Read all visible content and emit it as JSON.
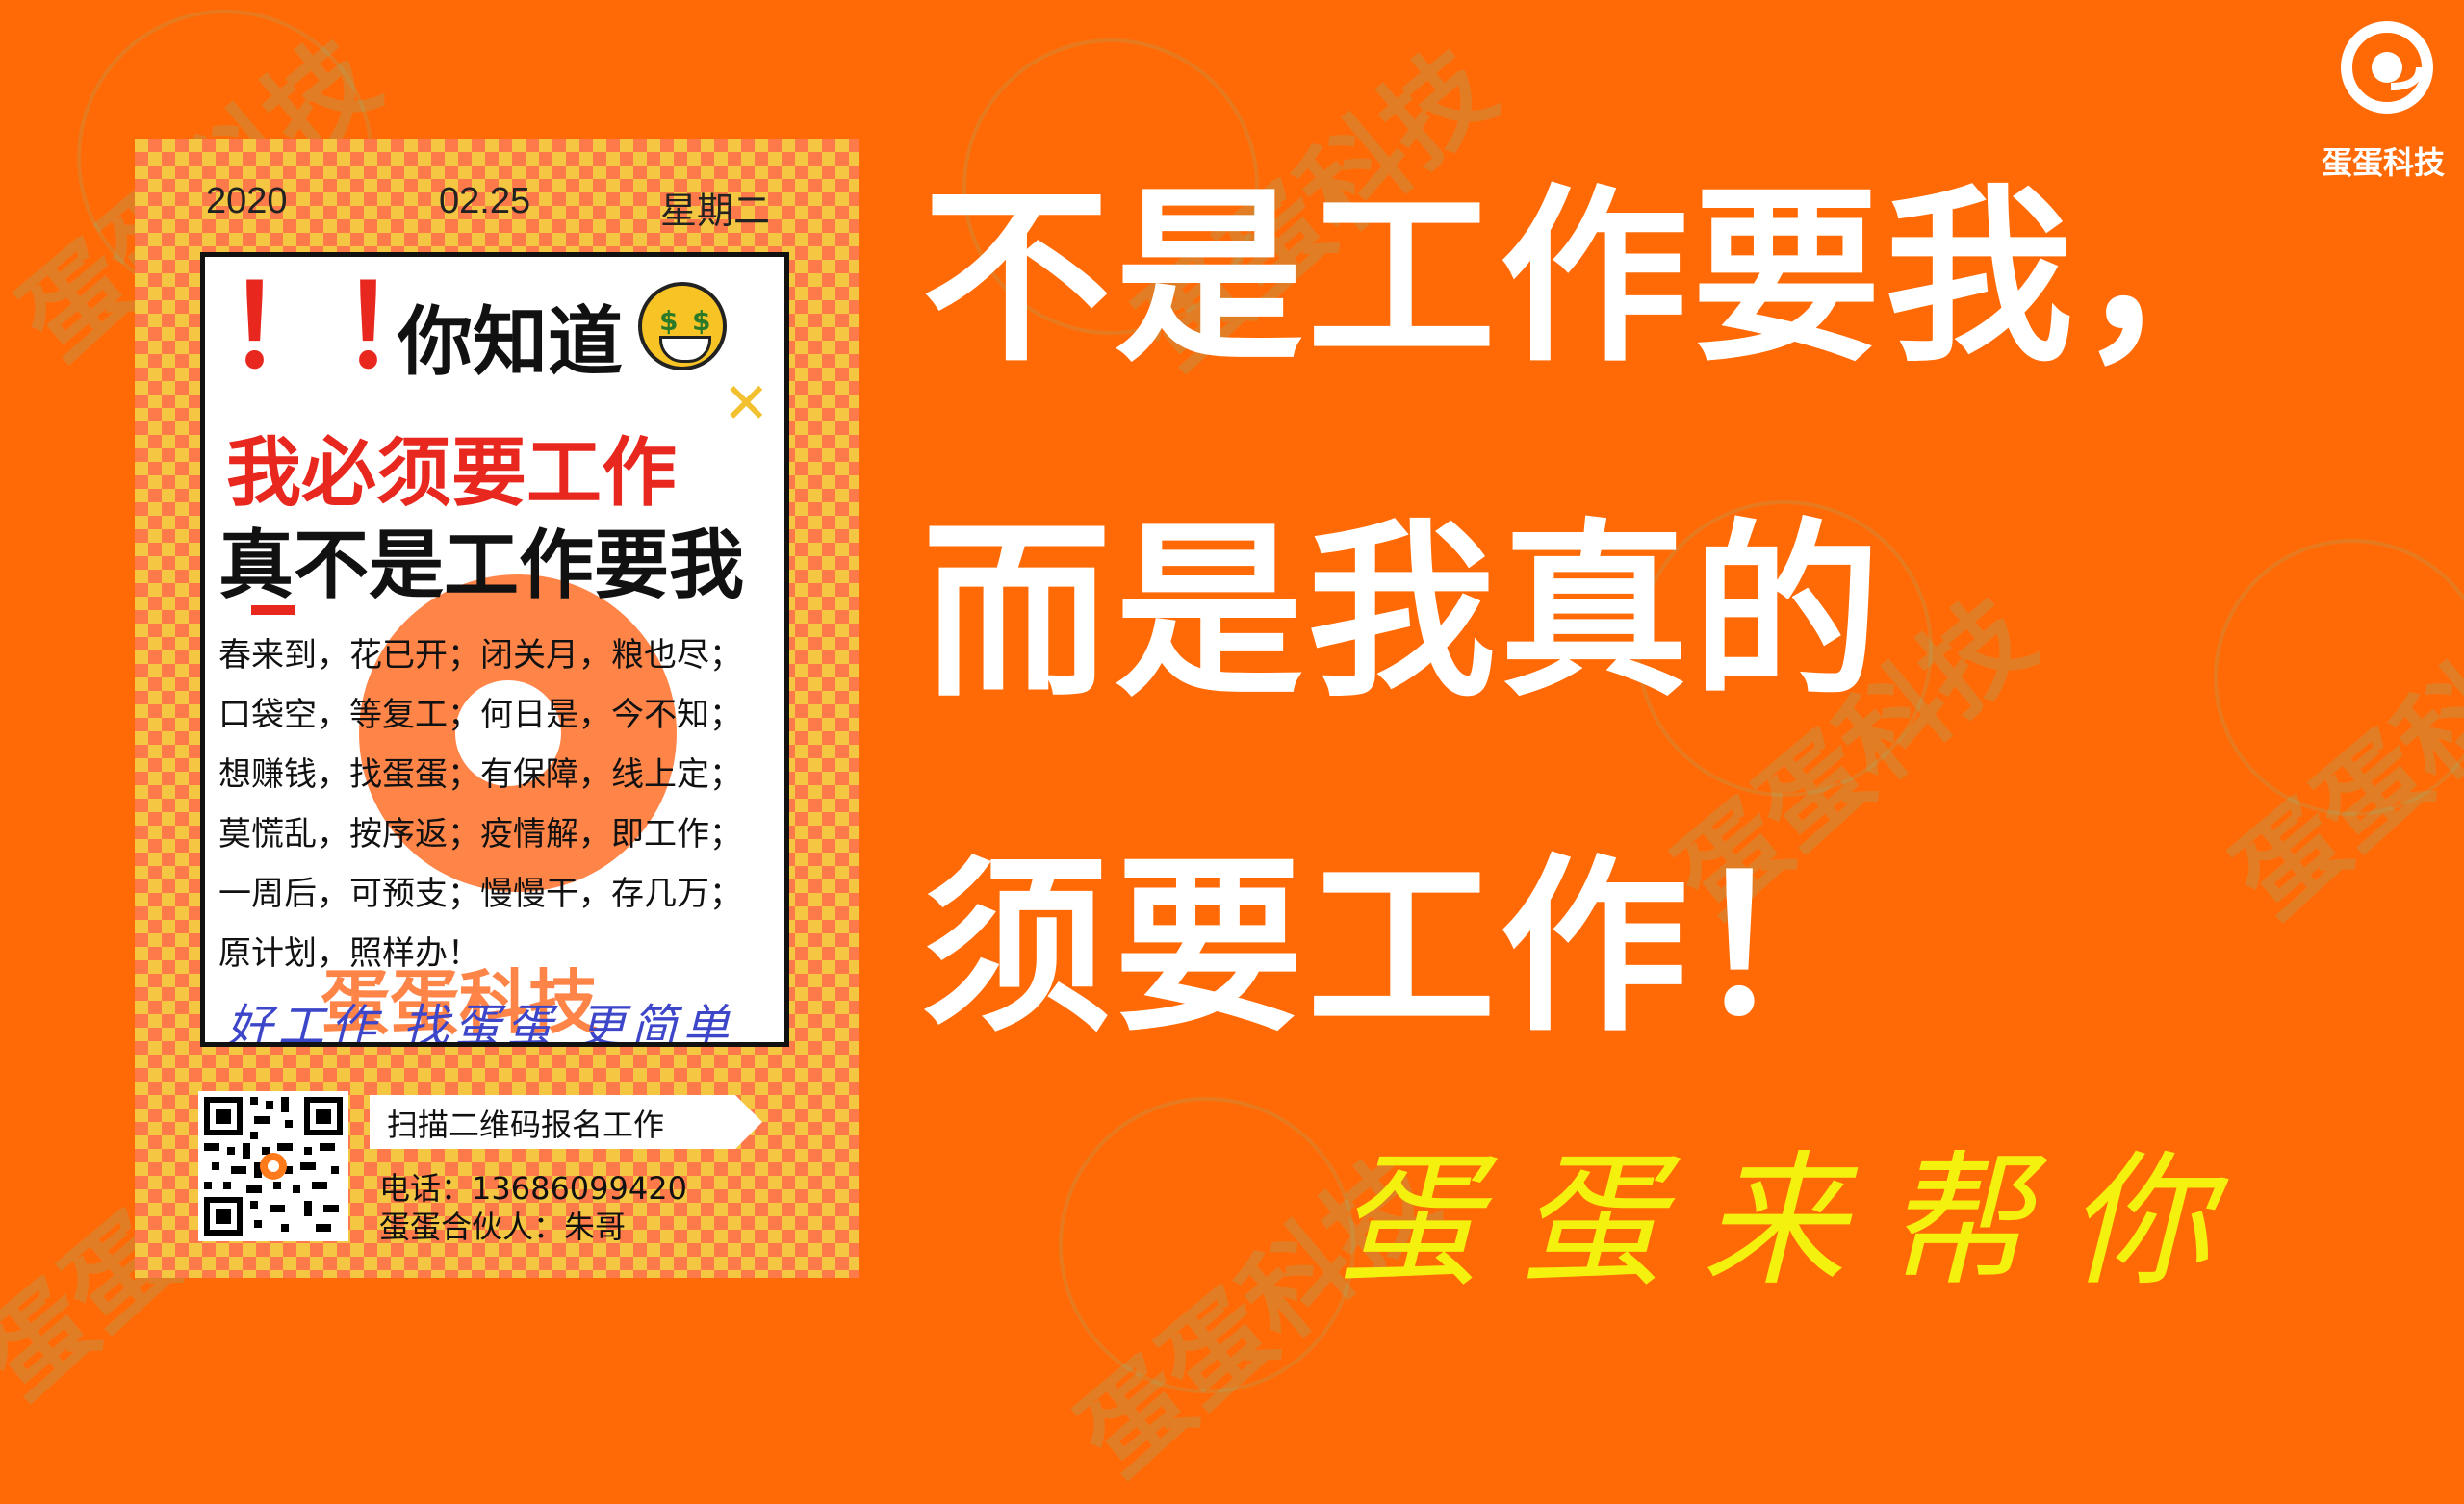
{
  "poster": {
    "year": "2020",
    "date": "02.25",
    "weekday": "星期二",
    "exclamations": "！！",
    "know": "你知道",
    "head1": "我必须要工作",
    "head2": "真不是工作要我",
    "verses": [
      "春来到，花已开；闭关月，粮也尽；",
      "口袋空，等复工；何日是，今不知；",
      "想赚钱，找蛋蛋；有保障，线上定；",
      "莫慌乱，按序返；疫情解，即工作；",
      "一周后，可预支；慢慢干，存几万；",
      "原计划，照样办！"
    ],
    "brand_watermark": "蛋蛋科技",
    "slogan": "好工作 找蛋蛋 更简单",
    "qr_label": "扫描二维码报名工作",
    "phone": "电话：13686099420",
    "partner": "蛋蛋合伙人：朱哥"
  },
  "headline": {
    "line1": "不是工作要我，",
    "line2": "而是我真的",
    "line3": "须要工作！"
  },
  "subline": "蛋蛋来帮你",
  "corner_brand": "蛋蛋科技",
  "watermark_text": "蛋蛋科技",
  "colors": {
    "background": "#ff6a06",
    "headline": "#ffffff",
    "subline": "#f5f10e",
    "accent_red": "#e8281e",
    "slogan_blue": "#3d46c9"
  }
}
